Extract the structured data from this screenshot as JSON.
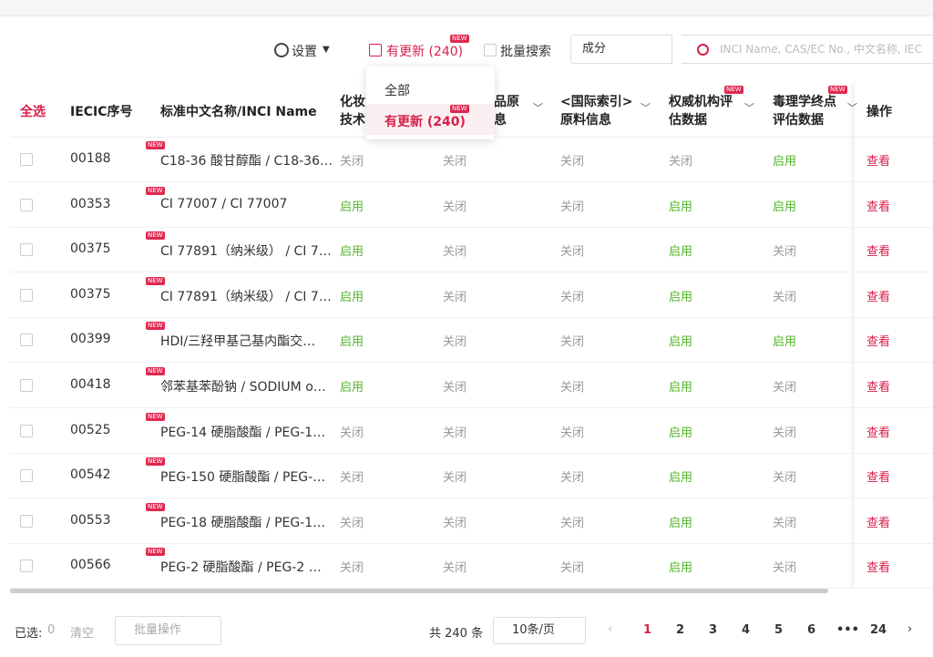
{
  "toolbar": {
    "settings": "设置",
    "update_filter": "有更新 (240)",
    "new_badge": "NEW",
    "batch_search": "批量搜索",
    "search_type": "成分",
    "search_placeholder": "INCI Name, CAS/EC No., 中文名称, IEC"
  },
  "dropdown": {
    "options": [
      "全部",
      "有更新 (240)"
    ]
  },
  "table": {
    "headers": [
      [
        "全选"
      ],
      [
        "IECIC序号"
      ],
      [
        "标准中文名称/INCI Name"
      ],
      [
        "化妆",
        "技术"
      ],
      [
        "品原",
        "息"
      ],
      [
        "<国际索引>",
        "原料信息"
      ],
      [
        "权威机构评",
        "估数据"
      ],
      [
        "毒理学终点",
        "评估数据"
      ],
      [
        "操作"
      ]
    ],
    "rows": [
      [
        "00188",
        "C18-36 酸甘醇酯 / C18-36…",
        "关闭",
        "关闭",
        "关闭",
        "关闭",
        "启用",
        "查看"
      ],
      [
        "00353",
        "CI 77007 / CI 77007",
        "启用",
        "关闭",
        "关闭",
        "启用",
        "启用",
        "查看"
      ],
      [
        "00375",
        "CI 77891（纳米级） / CI 7…",
        "启用",
        "关闭",
        "关闭",
        "启用",
        "关闭",
        "查看"
      ],
      [
        "00375",
        "CI 77891（纳米级） / CI 7…",
        "启用",
        "关闭",
        "关闭",
        "启用",
        "关闭",
        "查看"
      ],
      [
        "00399",
        "HDI/三羟甲基己基内酯交…",
        "启用",
        "关闭",
        "关闭",
        "启用",
        "启用",
        "查看"
      ],
      [
        "00418",
        "邻苯基苯酚钠 / SODIUM o…",
        "启用",
        "关闭",
        "关闭",
        "启用",
        "关闭",
        "查看"
      ],
      [
        "00525",
        "PEG-14 硬脂酸酯 / PEG-1…",
        "关闭",
        "关闭",
        "关闭",
        "启用",
        "关闭",
        "查看"
      ],
      [
        "00542",
        "PEG-150 硬脂酸酯 / PEG-…",
        "关闭",
        "关闭",
        "关闭",
        "启用",
        "关闭",
        "查看"
      ],
      [
        "00553",
        "PEG-18 硬脂酸酯 / PEG-1…",
        "关闭",
        "关闭",
        "关闭",
        "启用",
        "关闭",
        "查看"
      ],
      [
        "00566",
        "PEG-2 硬脂酸酯 / PEG-2 …",
        "关闭",
        "关闭",
        "关闭",
        "启用",
        "关闭",
        "查看"
      ]
    ],
    "enabled_label": "启用"
  },
  "footer": {
    "selected_label": "已选:",
    "selected_count": "0",
    "clear": "清空",
    "batch_action": "批量操作",
    "total": "共 240 条",
    "page_size": "10条/页",
    "pages": [
      "1",
      "2",
      "3",
      "4",
      "5",
      "6",
      "•••",
      "24"
    ]
  }
}
